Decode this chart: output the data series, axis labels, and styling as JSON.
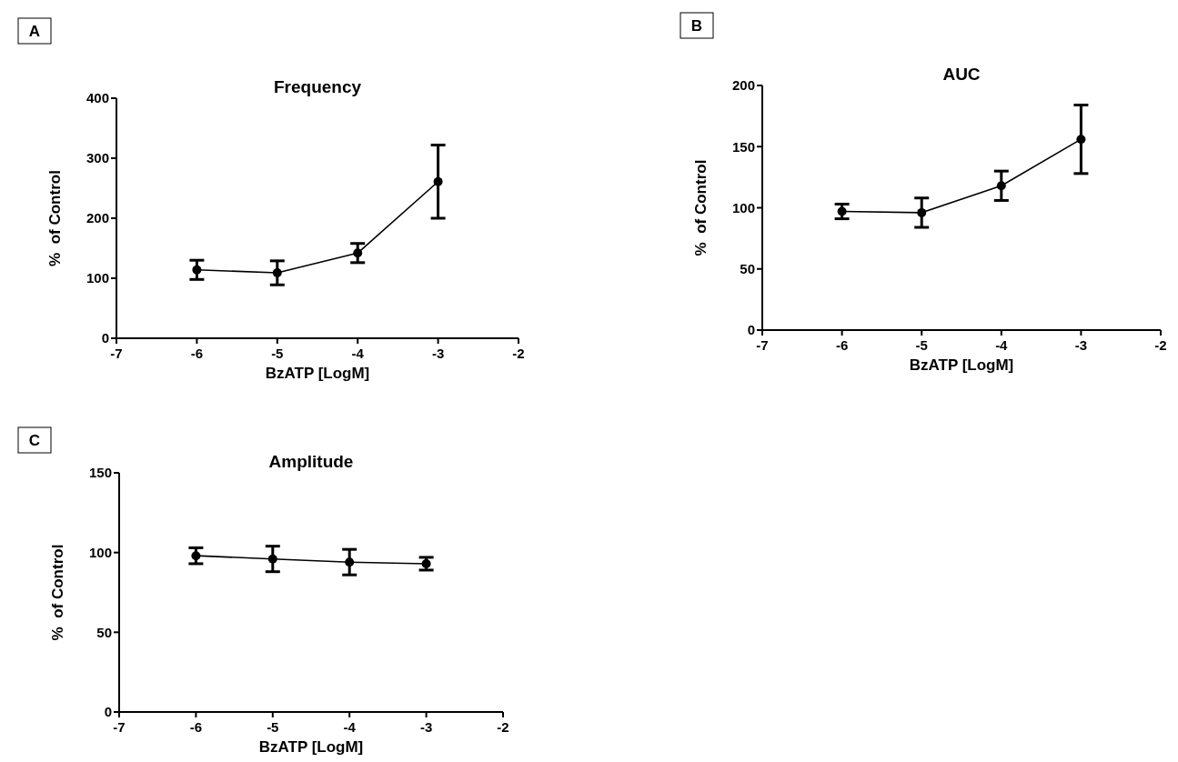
{
  "chart_data": [
    {
      "type": "line",
      "title": "Frequency",
      "xlabel": "BzATP [LogM]",
      "ylabel": "%  of Control",
      "annotations": [
        "A"
      ],
      "x": [
        -6,
        -5,
        -4,
        -3
      ],
      "series": [
        {
          "color": "#000000",
          "values": [
            114,
            109,
            142,
            261
          ],
          "errors": [
            16,
            20,
            16,
            61
          ]
        }
      ],
      "xlim": [
        -7,
        -2
      ],
      "xticks": [
        -7,
        -6,
        -5,
        -4,
        -3,
        -2
      ],
      "ylim": [
        0,
        400
      ],
      "yticks": [
        0,
        100,
        200,
        300,
        400
      ],
      "marker": "circle",
      "line_style": "solid"
    },
    {
      "type": "line",
      "title": "AUC",
      "xlabel": "BzATP [LogM]",
      "ylabel": "%  of Control",
      "annotations": [
        "B"
      ],
      "x": [
        -6,
        -5,
        -4,
        -3
      ],
      "series": [
        {
          "color": "#000000",
          "values": [
            97,
            96,
            118,
            156
          ],
          "errors": [
            6,
            12,
            12,
            28
          ]
        }
      ],
      "xlim": [
        -7,
        -2
      ],
      "xticks": [
        -7,
        -6,
        -5,
        -4,
        -3,
        -2
      ],
      "ylim": [
        0,
        200
      ],
      "yticks": [
        0,
        50,
        100,
        150,
        200
      ],
      "marker": "circle",
      "line_style": "solid"
    },
    {
      "type": "line",
      "title": "Amplitude",
      "xlabel": "BzATP [LogM]",
      "ylabel": "%  of Control",
      "annotations": [
        "C"
      ],
      "x": [
        -6,
        -5,
        -4,
        -3
      ],
      "series": [
        {
          "color": "#000000",
          "values": [
            98,
            96,
            94,
            93
          ],
          "errors": [
            5,
            8,
            8,
            4
          ]
        }
      ],
      "xlim": [
        -7,
        -2
      ],
      "xticks": [
        -7,
        -6,
        -5,
        -4,
        -3,
        -2
      ],
      "ylim": [
        0,
        150
      ],
      "yticks": [
        0,
        50,
        100,
        150
      ],
      "marker": "circle",
      "line_style": "solid"
    }
  ]
}
